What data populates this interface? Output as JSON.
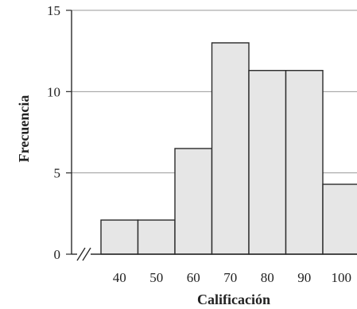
{
  "chart_data": {
    "type": "bar",
    "categories": [
      "40",
      "50",
      "60",
      "70",
      "80",
      "90",
      "100"
    ],
    "values": [
      2.1,
      2.1,
      6.5,
      13,
      11.3,
      11.3,
      4.3
    ],
    "xlabel": "Calificación",
    "ylabel": "Frecuencia",
    "ylim": [
      0,
      15
    ],
    "yticks": [
      0,
      5,
      10,
      15
    ],
    "grid": true,
    "axis_break": true,
    "colors": {
      "bar_fill": "#e6e6e6",
      "bar_edge": "#2a2a2a",
      "grid": "#9a9a9a",
      "axis": "#2a2a2a"
    }
  }
}
